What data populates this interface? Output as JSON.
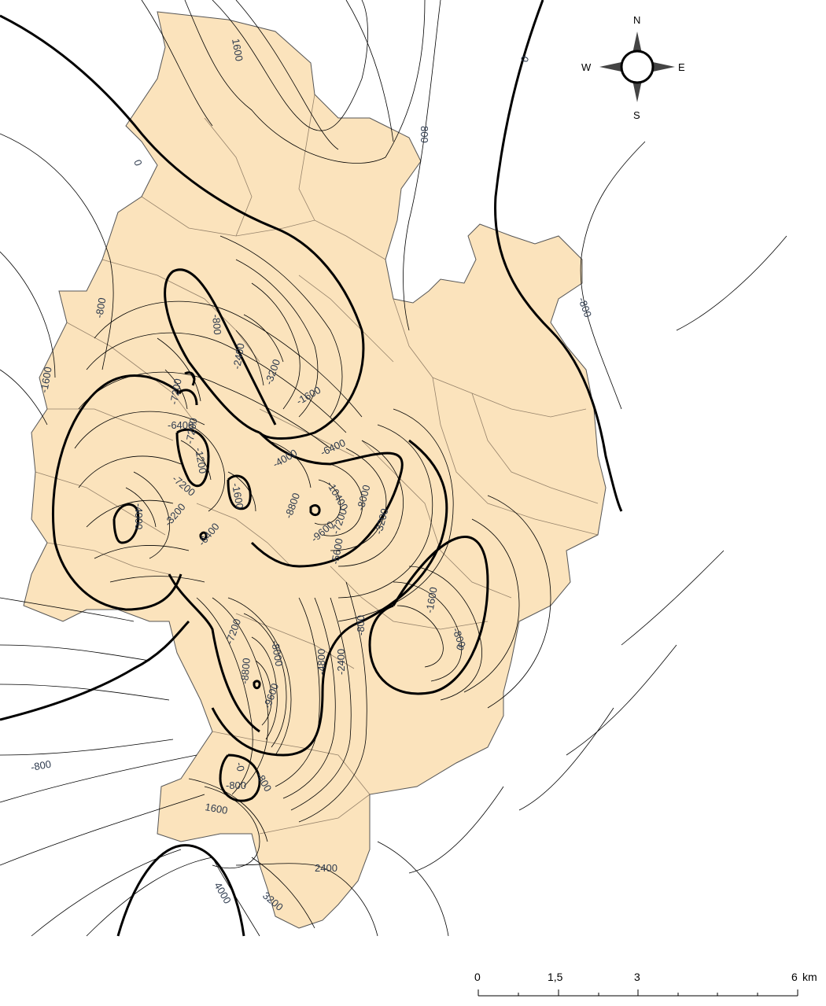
{
  "map": {
    "region_fill": "#fbe3bc",
    "contour_color": "#000000",
    "label_color": "#2d3a4e",
    "contour_labels": [
      "1600",
      "0",
      "800",
      "0",
      "-800",
      "-800",
      "-1600",
      "-800",
      "-2400",
      "-3200",
      "-1600",
      "-7200",
      "-6400",
      "-7200",
      "-1200",
      "-7200",
      "-1600",
      "-4000",
      "-3200",
      "-6400",
      "-4000",
      "-6400",
      "-8800",
      "-10400",
      "-8000",
      "-3200",
      "-9600",
      "-7200",
      "-5600",
      "-1600",
      "-800",
      "0",
      "-7200",
      "-8000",
      "-8800",
      "-9600",
      "-4800",
      "-2400",
      "-800",
      "-800",
      "-0",
      "-800",
      "-800",
      "1600",
      "2400",
      "4000",
      "3200"
    ]
  },
  "compass": {
    "north": "N",
    "south": "S",
    "east": "E",
    "west": "W"
  },
  "scale_bar": {
    "labels": [
      "0",
      "1,5",
      "3",
      "6"
    ],
    "unit": "km"
  }
}
